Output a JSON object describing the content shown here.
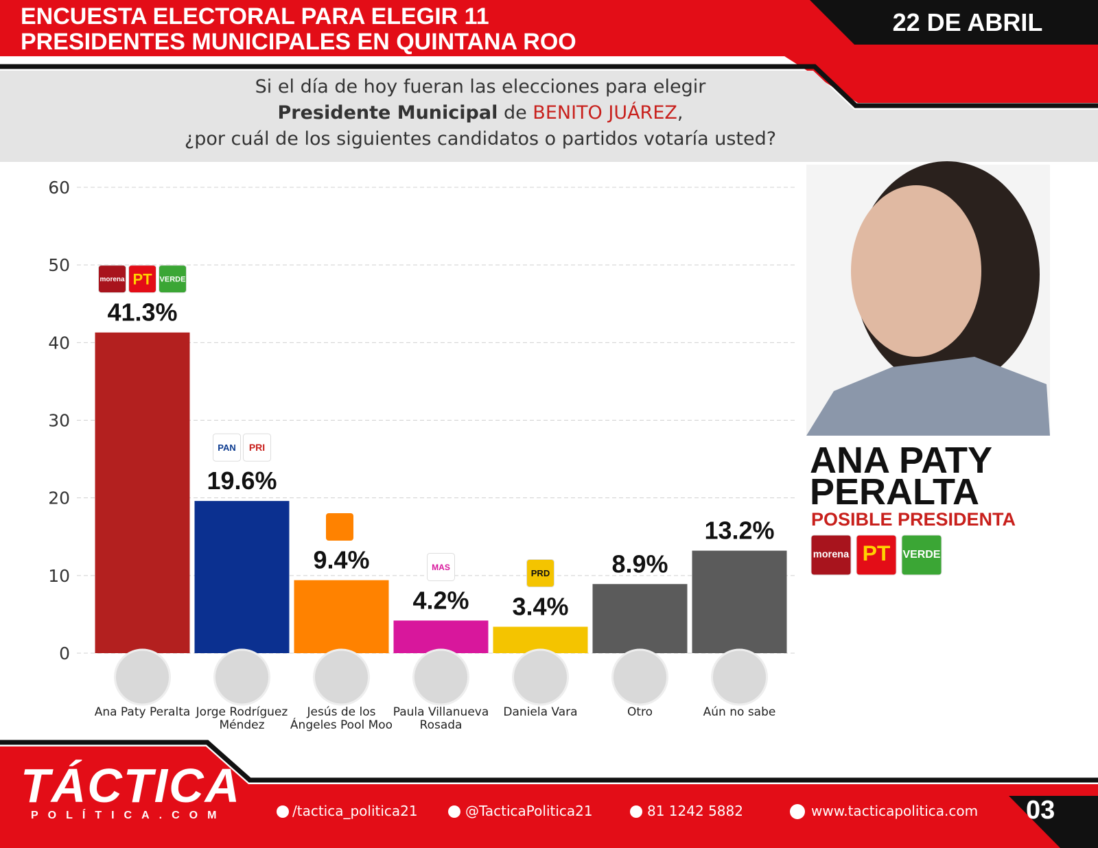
{
  "header": {
    "title": "ENCUESTA ELECTORAL PARA ELEGIR 11 PRESIDENTES MUNICIPALES EN QUINTANA ROO",
    "date": "22 DE ABRIL"
  },
  "question": {
    "line1": "Si el día de hoy fueran las elecciones para elegir",
    "line2_bold": "Presidente Municipal",
    "line2_mid": "de",
    "line2_place": "BENITO JUÁREZ",
    "line2_end": ",",
    "line3": "¿por cuál de los siguientes candidatos o partidos votaría usted?"
  },
  "chart_data": {
    "type": "bar",
    "categories": [
      "Ana Paty Peralta",
      "Jorge Rodríguez Méndez",
      "Jesús de los Ángeles Pool Moo",
      "Paula Villanueva Rosada",
      "Daniela Vara",
      "Otro",
      "Aún no sabe"
    ],
    "values": [
      41.3,
      19.6,
      9.4,
      4.2,
      3.4,
      8.9,
      13.2
    ],
    "value_labels": [
      "41.3%",
      "19.6%",
      "9.4%",
      "4.2%",
      "3.4%",
      "8.9%",
      "13.2%"
    ],
    "colors": [
      "#b3201f",
      "#0b3090",
      "#ff8200",
      "#d8179c",
      "#f4c400",
      "#5b5b5b",
      "#5b5b5b"
    ],
    "parties": [
      [
        "morena",
        "PT",
        "VERDE"
      ],
      [
        "PAN",
        "PRI"
      ],
      [],
      [
        "MAS"
      ],
      [
        "PRD"
      ],
      [],
      []
    ],
    "ylim": [
      0,
      60
    ],
    "yticks": [
      0,
      10,
      20,
      30,
      40,
      50,
      60
    ],
    "grid": true
  },
  "highlight": {
    "name": "ANA PATY PERALTA",
    "role": "POSIBLE PRESIDENTA",
    "parties": [
      "morena",
      "PT",
      "VERDE"
    ]
  },
  "footer": {
    "brand": "TÁCTICA",
    "brand_sub": "POLÍTICA.COM",
    "facebook": "/tactica_politica21",
    "instagram": "@TacticaPolitica21",
    "whatsapp": "81 1242 5882",
    "web": "www.tacticapolitica.com",
    "page": "03"
  }
}
